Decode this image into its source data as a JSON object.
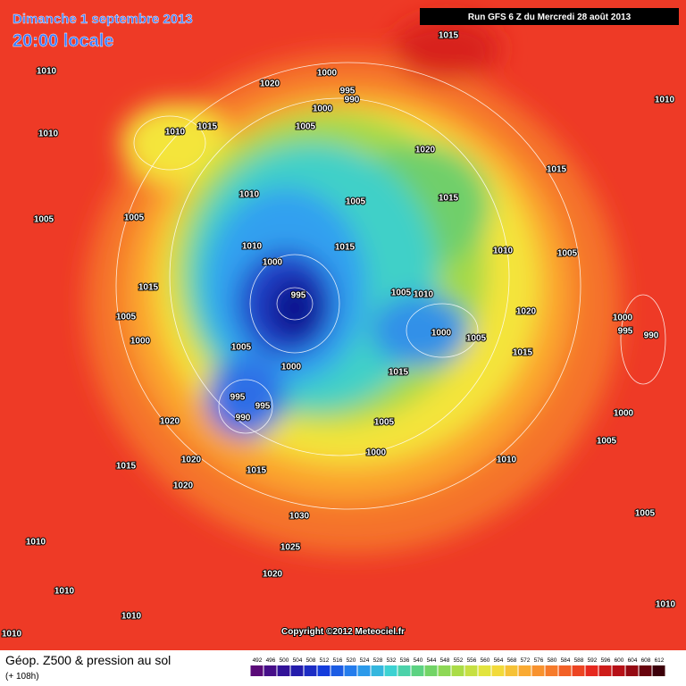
{
  "header": {
    "date": "Dimanche 1 septembre 2013",
    "time": "20:00 locale",
    "run": "Run GFS 6 Z du Mercredi 28 août 2013"
  },
  "footer": {
    "title": "Géop. Z500 & pression au sol",
    "lead": "(+ 108h)",
    "copyright": "Copyright ©2012 Meteociel.fr"
  },
  "colorbar": {
    "ticks": [
      492,
      496,
      500,
      504,
      508,
      512,
      516,
      520,
      524,
      528,
      532,
      536,
      540,
      544,
      548,
      552,
      556,
      560,
      564,
      568,
      572,
      576,
      580,
      584,
      588,
      592,
      596,
      600,
      604,
      608,
      612
    ]
  },
  "isobars": [
    "1015",
    "1010",
    "1020",
    "1000",
    "995",
    "990",
    "1000",
    "1010",
    "1010",
    "1010",
    "1015",
    "1005",
    "1020",
    "1015",
    "1010",
    "1005",
    "1015",
    "1005",
    "1005",
    "1010",
    "1000",
    "1015",
    "1010",
    "1005",
    "1015",
    "995",
    "1005",
    "1010",
    "1020",
    "1005",
    "1000",
    "995",
    "990",
    "1000",
    "1000",
    "1005",
    "1005",
    "1015",
    "1000",
    "1015",
    "995",
    "995",
    "1000",
    "990",
    "1005",
    "1020",
    "1005",
    "1000",
    "1020",
    "1010",
    "1015",
    "1015",
    "1020",
    "1030",
    "1005",
    "1010",
    "1025",
    "1020",
    "1010",
    "1010",
    "1010",
    "1010"
  ]
}
